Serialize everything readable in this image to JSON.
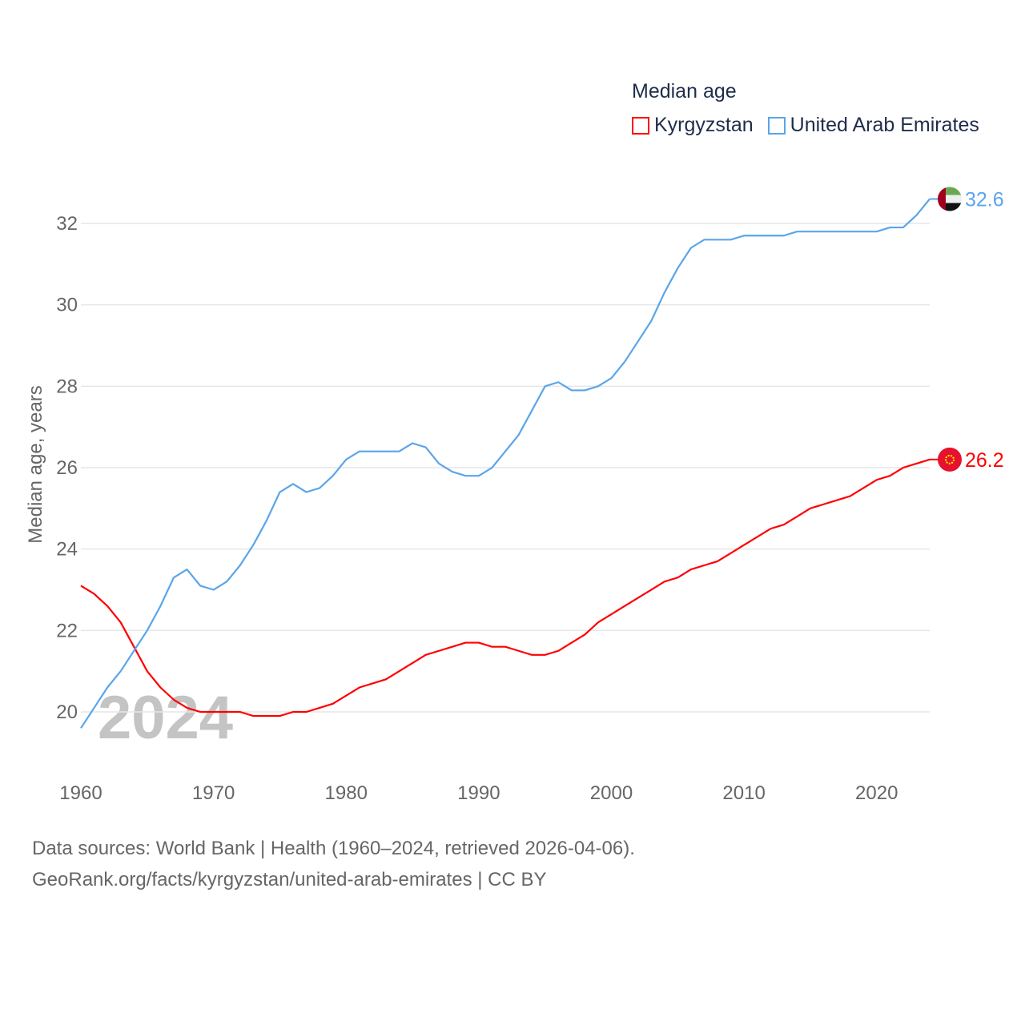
{
  "chart_data": {
    "type": "line",
    "title": "Median age",
    "ylabel": "Median age, years",
    "xlabel": "",
    "year_watermark": "2024",
    "xlim": [
      1960,
      2024
    ],
    "ylim": [
      19,
      33
    ],
    "x_ticks": [
      "1960",
      "1970",
      "1980",
      "1990",
      "2000",
      "2010",
      "2020"
    ],
    "y_ticks": [
      "20",
      "22",
      "24",
      "26",
      "28",
      "30",
      "32"
    ],
    "grid": true,
    "legend_position": "top-right",
    "x": [
      1960,
      1961,
      1962,
      1963,
      1964,
      1965,
      1966,
      1967,
      1968,
      1969,
      1970,
      1971,
      1972,
      1973,
      1974,
      1975,
      1976,
      1977,
      1978,
      1979,
      1980,
      1981,
      1982,
      1983,
      1984,
      1985,
      1986,
      1987,
      1988,
      1989,
      1990,
      1991,
      1992,
      1993,
      1994,
      1995,
      1996,
      1997,
      1998,
      1999,
      2000,
      2001,
      2002,
      2003,
      2004,
      2005,
      2006,
      2007,
      2008,
      2009,
      2010,
      2011,
      2012,
      2013,
      2014,
      2015,
      2016,
      2017,
      2018,
      2019,
      2020,
      2021,
      2022,
      2023,
      2024
    ],
    "series": [
      {
        "name": "Kyrgyzstan",
        "color": "#ff0000",
        "end_label": "26.2",
        "values": [
          23.1,
          22.9,
          22.6,
          22.2,
          21.6,
          21.0,
          20.6,
          20.3,
          20.1,
          20.0,
          20.0,
          20.0,
          20.0,
          19.9,
          19.9,
          19.9,
          20.0,
          20.0,
          20.1,
          20.2,
          20.4,
          20.6,
          20.7,
          20.8,
          21.0,
          21.2,
          21.4,
          21.5,
          21.6,
          21.7,
          21.7,
          21.6,
          21.6,
          21.5,
          21.4,
          21.4,
          21.5,
          21.7,
          21.9,
          22.2,
          22.4,
          22.6,
          22.8,
          23.0,
          23.2,
          23.3,
          23.5,
          23.6,
          23.7,
          23.9,
          24.1,
          24.3,
          24.5,
          24.6,
          24.8,
          25.0,
          25.1,
          25.2,
          25.3,
          25.5,
          25.7,
          25.8,
          26.0,
          26.1,
          26.2
        ]
      },
      {
        "name": "United Arab Emirates",
        "color": "#5aa5ea",
        "end_label": "32.6",
        "values": [
          19.6,
          20.1,
          20.6,
          21.0,
          21.5,
          22.0,
          22.6,
          23.3,
          23.5,
          23.1,
          23.0,
          23.2,
          23.6,
          24.1,
          24.7,
          25.4,
          25.6,
          25.4,
          25.5,
          25.8,
          26.2,
          26.4,
          26.4,
          26.4,
          26.4,
          26.6,
          26.5,
          26.1,
          25.9,
          25.8,
          25.8,
          26.0,
          26.4,
          26.8,
          27.4,
          28.0,
          28.1,
          27.9,
          27.9,
          28.0,
          28.2,
          28.6,
          29.1,
          29.6,
          30.3,
          30.9,
          31.4,
          31.6,
          31.6,
          31.6,
          31.7,
          31.7,
          31.7,
          31.7,
          31.8,
          31.8,
          31.8,
          31.8,
          31.8,
          31.8,
          31.8,
          31.9,
          31.9,
          32.2,
          32.6
        ]
      }
    ]
  },
  "footer": {
    "line1": "Data sources: World Bank | Health (1960–2024, retrieved 2026-04-06).",
    "line2": "GeoRank.org/facts/kyrgyzstan/united-arab-emirates | CC BY"
  }
}
